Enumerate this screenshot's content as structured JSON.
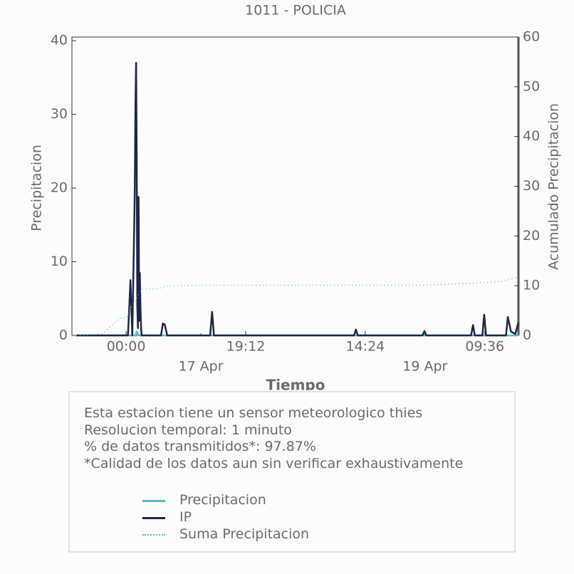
{
  "chart_data": {
    "type": "line",
    "title": "1011 - POLICIA",
    "x_label": "Tiempo",
    "y_label": "Precipitacion",
    "y2_label": "Acumulado Precipitacion",
    "xlim": [
      -8.7,
      63
    ],
    "xticks": [
      {
        "value": 0,
        "label": "00:00"
      },
      {
        "value": 19.2,
        "label": "19:12"
      },
      {
        "value": 38.4,
        "label": "14:24"
      },
      {
        "value": 57.6,
        "label": "09:36"
      }
    ],
    "xticks_minor": [
      {
        "value": 12,
        "label": "17 Apr"
      },
      {
        "value": 48,
        "label": "19 Apr"
      }
    ],
    "ylim": [
      0,
      40.5
    ],
    "yticks": [
      0,
      10,
      20,
      30,
      40
    ],
    "y2lim": [
      0,
      60
    ],
    "y2ticks": [
      0,
      10,
      20,
      30,
      40,
      50,
      60
    ],
    "series": [
      {
        "name": "Precipitacion",
        "color": "#5bbcbf",
        "style": "solid",
        "x": [
          -8,
          1.5,
          1.7,
          2.0,
          63
        ],
        "values": [
          0,
          0,
          0.5,
          0,
          0
        ]
      },
      {
        "name": "IP",
        "color": "#1f2545",
        "style": "solid",
        "x": [
          -8,
          0.3,
          0.7,
          1.0,
          1.3,
          1.4,
          1.5,
          1.6,
          1.7,
          1.8,
          1.9,
          2.0,
          2.1,
          2.2,
          2.3,
          2.4,
          2.5,
          2.7,
          5.6,
          5.9,
          6.2,
          6.6,
          13.5,
          13.8,
          14.1,
          36.6,
          36.9,
          37.2,
          47.6,
          47.9,
          48.2,
          55.4,
          55.7,
          56.0,
          57.2,
          57.5,
          57.8,
          61.0,
          61.3,
          61.8,
          62.5,
          63
        ],
        "values": [
          0,
          0,
          7.5,
          0,
          14.5,
          20,
          31,
          37,
          25,
          4,
          1,
          18.8,
          2,
          8.5,
          4,
          1,
          0,
          0,
          0,
          1.6,
          1.5,
          0,
          0,
          3.2,
          0,
          0,
          0.8,
          0,
          0,
          0.6,
          0,
          0,
          1.4,
          0,
          0,
          2.8,
          0,
          0,
          2.5,
          0.5,
          0.2,
          1.8
        ]
      },
      {
        "name": "Suma Precipitacion",
        "color": "#5bbcbf",
        "style": "dotted",
        "axis": "y2",
        "x": [
          -8,
          -4,
          -3,
          -1,
          0,
          1,
          2.5,
          5,
          7,
          12,
          30,
          48,
          55,
          60,
          63
        ],
        "values": [
          0,
          0.3,
          1.2,
          3.5,
          3.5,
          6,
          9.3,
          9.4,
          10,
          10.1,
          10.1,
          10.1,
          10.5,
          10.8,
          11.7
        ]
      }
    ]
  },
  "info": [
    "Esta estacion tiene un sensor meteorologico thies",
    "Resolucion temporal: 1 minuto",
    "% de datos transmitidos*: 97.87%",
    "*Calidad de los datos aun sin verificar exhaustivamente"
  ]
}
